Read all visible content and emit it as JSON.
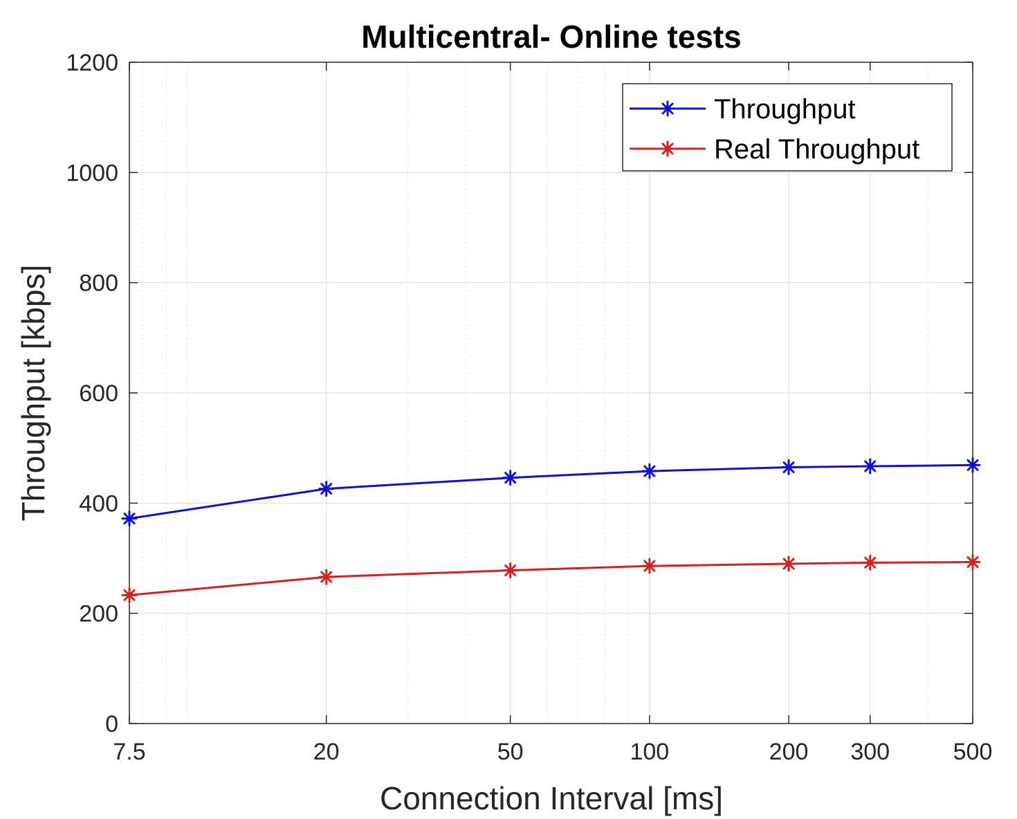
{
  "chart_data": {
    "type": "line",
    "title": "Multicentral- Online tests",
    "xlabel": "Connection Interval [ms]",
    "ylabel": "Throughput [kbps]",
    "x_scale": "log",
    "xlim": [
      7.5,
      500
    ],
    "ylim": [
      0,
      1200
    ],
    "x": [
      7.5,
      20,
      50,
      100,
      200,
      300,
      500
    ],
    "x_tick_labels": [
      "7.5",
      "20",
      "50",
      "100",
      "200",
      "300",
      "500"
    ],
    "y_ticks": [
      0,
      200,
      400,
      600,
      800,
      1000,
      1200
    ],
    "y_tick_labels": [
      "0",
      "200",
      "400",
      "600",
      "800",
      "1000",
      "1200"
    ],
    "grid": true,
    "legend_position": "top-right",
    "series": [
      {
        "name": "Throughput",
        "color": "#1010d0",
        "marker": "asterisk",
        "values": [
          372,
          426,
          446,
          458,
          465,
          467,
          469
        ]
      },
      {
        "name": "Real Throughput",
        "color": "#d42020",
        "marker": "asterisk",
        "values": [
          233,
          266,
          278,
          286,
          290,
          292,
          293
        ]
      }
    ]
  }
}
